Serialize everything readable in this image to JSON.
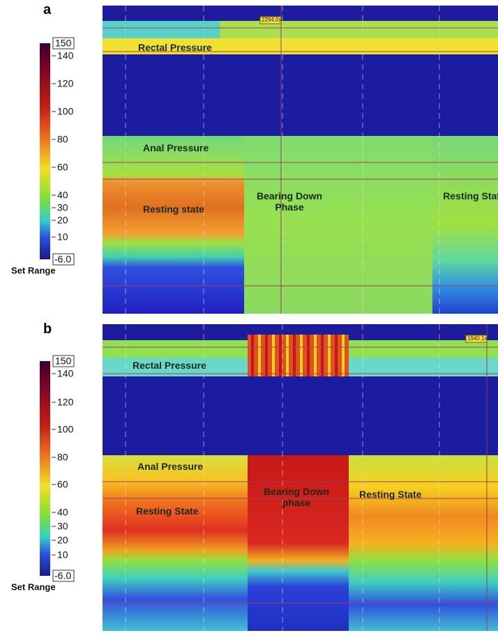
{
  "panels": [
    {
      "label": "a",
      "time_marker": "2294.0s",
      "colorbar": {
        "max_box": 150,
        "ticks": [
          140,
          120,
          100,
          80,
          60,
          40,
          30,
          20,
          10
        ],
        "min_box": "-6.0",
        "caption": "Set Range"
      },
      "annotations": [
        "Rectal Pressure",
        "Anal Pressure",
        "Resting state",
        "Bearing Down Phase",
        "Resting State"
      ]
    },
    {
      "label": "b",
      "time_marker": "1940.1s",
      "colorbar": {
        "max_box": 150,
        "ticks": [
          140,
          120,
          100,
          80,
          60,
          40,
          30,
          20,
          10
        ],
        "min_box": "-6.0",
        "caption": "Set Range"
      },
      "annotations": [
        "Rectal Pressure",
        "Anal Pressure",
        "Resting State",
        "Bearing Down phase",
        "Resting State"
      ]
    }
  ]
}
